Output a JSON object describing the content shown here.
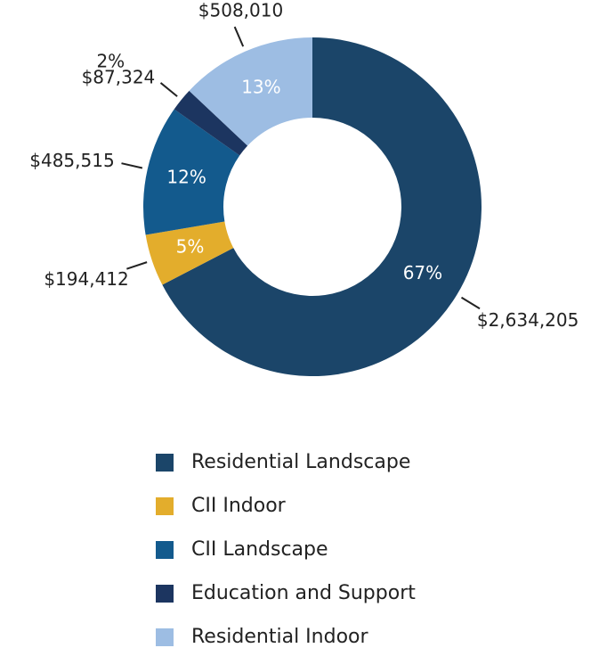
{
  "chart_data": {
    "type": "donut",
    "categories": [
      "Residential Landscape",
      "CII Indoor",
      "CII Landscape",
      "Education and Support",
      "Residential Indoor"
    ],
    "values": [
      2634205,
      194412,
      485515,
      87324,
      508010
    ],
    "value_labels": [
      "$2,634,205",
      "$194,412",
      "$485,515",
      "$87,324",
      "$508,010"
    ],
    "percent_labels": [
      "67%",
      "5%",
      "12%",
      "2%",
      "13%"
    ],
    "colors": [
      "#1b4569",
      "#e3ad2c",
      "#135a8d",
      "#1c3560",
      "#9dbde3"
    ],
    "legend": "bottom"
  }
}
